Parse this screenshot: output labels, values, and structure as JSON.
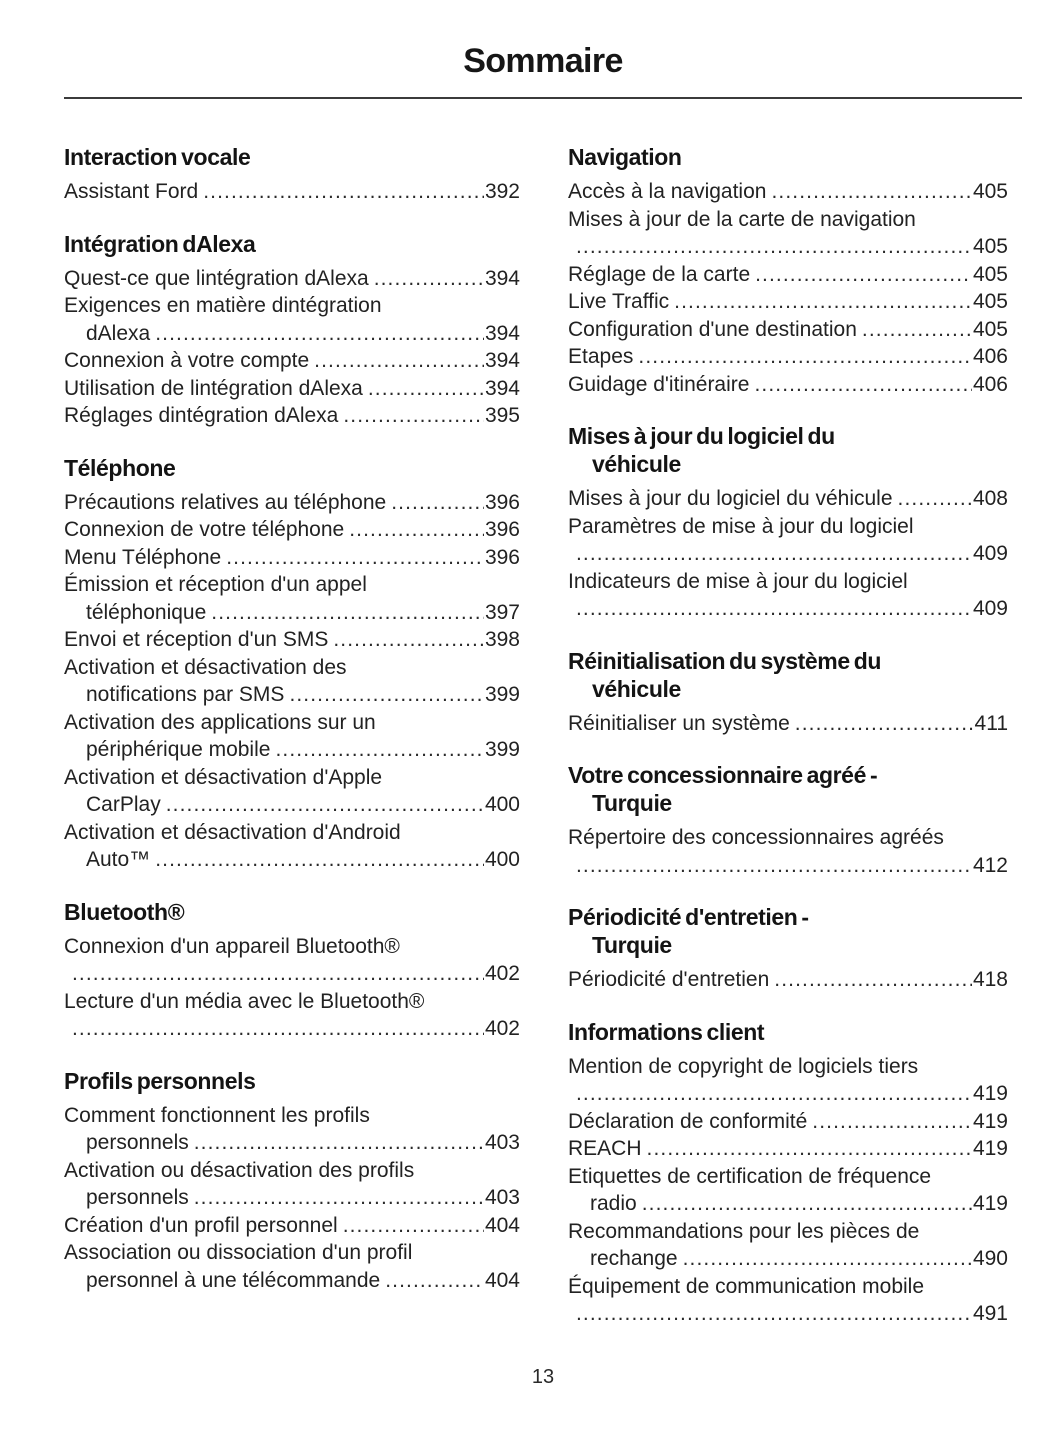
{
  "page": {
    "title": "Sommaire",
    "page_number": "13"
  },
  "columns": [
    {
      "name": "left",
      "sections": [
        {
          "heading_lines": [
            "Interaction vocale"
          ],
          "entries": [
            {
              "lines": [
                "Assistant Ford"
              ],
              "page": "392"
            }
          ]
        },
        {
          "heading_lines": [
            "Intégration dAlexa"
          ],
          "entries": [
            {
              "lines": [
                "Quest-ce que lintégration dAlexa"
              ],
              "page": "394"
            },
            {
              "lines": [
                "Exigences en matière dintégration",
                "dAlexa"
              ],
              "page": "394"
            },
            {
              "lines": [
                "Connexion à votre compte"
              ],
              "page": "394"
            },
            {
              "lines": [
                "Utilisation de lintégration dAlexa"
              ],
              "page": "394"
            },
            {
              "lines": [
                "Réglages dintégration dAlexa"
              ],
              "page": "395"
            }
          ]
        },
        {
          "heading_lines": [
            "Téléphone"
          ],
          "entries": [
            {
              "lines": [
                "Précautions relatives au téléphone"
              ],
              "page": "396"
            },
            {
              "lines": [
                "Connexion de votre téléphone"
              ],
              "page": "396"
            },
            {
              "lines": [
                "Menu Téléphone"
              ],
              "page": "396"
            },
            {
              "lines": [
                "Émission et réception d'un appel",
                "téléphonique"
              ],
              "page": "397"
            },
            {
              "lines": [
                "Envoi et réception d'un SMS"
              ],
              "page": "398"
            },
            {
              "lines": [
                "Activation et désactivation des",
                "notifications par SMS"
              ],
              "page": "399"
            },
            {
              "lines": [
                "Activation des applications sur un",
                "périphérique mobile"
              ],
              "page": "399"
            },
            {
              "lines": [
                "Activation et désactivation d'Apple",
                "CarPlay"
              ],
              "page": "400"
            },
            {
              "lines": [
                "Activation et désactivation d'Android",
                "Auto™"
              ],
              "page": "400"
            }
          ]
        },
        {
          "heading_lines": [
            "Bluetooth®"
          ],
          "entries": [
            {
              "lines": [
                "Connexion d'un appareil Bluetooth®",
                ""
              ],
              "page": "402"
            },
            {
              "lines": [
                "Lecture d'un média avec le Bluetooth®",
                ""
              ],
              "page": "402"
            }
          ]
        },
        {
          "heading_lines": [
            "Profils personnels"
          ],
          "entries": [
            {
              "lines": [
                "Comment fonctionnent les profils",
                "personnels"
              ],
              "page": "403"
            },
            {
              "lines": [
                "Activation ou désactivation des profils",
                "personnels"
              ],
              "page": "403"
            },
            {
              "lines": [
                "Création d'un profil personnel"
              ],
              "page": "404"
            },
            {
              "lines": [
                "Association ou dissociation d'un profil",
                "personnel à une télécommande"
              ],
              "page": "404"
            }
          ]
        }
      ]
    },
    {
      "name": "right",
      "sections": [
        {
          "heading_lines": [
            "Navigation"
          ],
          "entries": [
            {
              "lines": [
                "Accès à la navigation"
              ],
              "page": "405"
            },
            {
              "lines": [
                "Mises à jour de la carte de navigation",
                ""
              ],
              "page": "405"
            },
            {
              "lines": [
                "Réglage de la carte"
              ],
              "page": "405"
            },
            {
              "lines": [
                "Live Traffic"
              ],
              "page": "405"
            },
            {
              "lines": [
                "Configuration d'une destination"
              ],
              "page": "405"
            },
            {
              "lines": [
                "Etapes"
              ],
              "page": "406"
            },
            {
              "lines": [
                "Guidage d'itinéraire"
              ],
              "page": "406"
            }
          ]
        },
        {
          "heading_lines": [
            "Mises à jour du logiciel du",
            "véhicule"
          ],
          "entries": [
            {
              "lines": [
                "Mises à jour du logiciel du véhicule"
              ],
              "page": "408"
            },
            {
              "lines": [
                "Paramètres de mise à jour du logiciel",
                ""
              ],
              "page": "409"
            },
            {
              "lines": [
                "Indicateurs de mise à jour du logiciel",
                ""
              ],
              "page": "409"
            }
          ]
        },
        {
          "heading_lines": [
            "Réinitialisation du système du",
            "véhicule"
          ],
          "entries": [
            {
              "lines": [
                "Réinitialiser un système"
              ],
              "page": "411"
            }
          ]
        },
        {
          "heading_lines": [
            "Votre concessionnaire agréé -",
            "Turquie"
          ],
          "entries": [
            {
              "lines": [
                "Répertoire des concessionnaires agréés",
                ""
              ],
              "page": "412"
            }
          ]
        },
        {
          "heading_lines": [
            "Périodicité d'entretien -",
            "Turquie"
          ],
          "entries": [
            {
              "lines": [
                "Périodicité d'entretien"
              ],
              "page": "418"
            }
          ]
        },
        {
          "heading_lines": [
            "Informations client"
          ],
          "entries": [
            {
              "lines": [
                "Mention de copyright de logiciels tiers",
                ""
              ],
              "page": "419"
            },
            {
              "lines": [
                "Déclaration de conformité"
              ],
              "page": "419"
            },
            {
              "lines": [
                "REACH"
              ],
              "page": "419"
            },
            {
              "lines": [
                "Etiquettes de certification de fréquence",
                "radio"
              ],
              "page": "419"
            },
            {
              "lines": [
                "Recommandations pour les pièces de",
                "rechange"
              ],
              "page": "490"
            },
            {
              "lines": [
                "Équipement de communication mobile",
                ""
              ],
              "page": "491"
            }
          ]
        }
      ]
    }
  ]
}
